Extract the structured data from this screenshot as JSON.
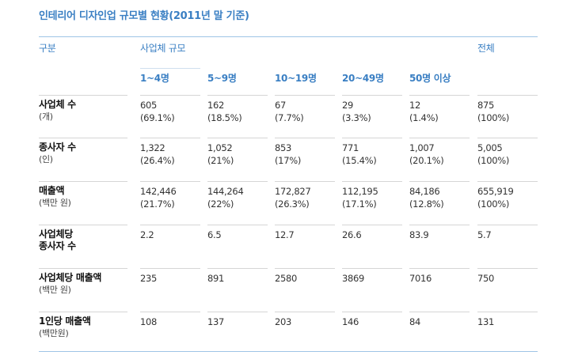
{
  "title": "인테리어 디자인업 규모별 현황(2011년 말 기준)",
  "header": {
    "category": "구분",
    "group": "사업체 규모",
    "total": "전체",
    "sizes": [
      "1~4명",
      "5~9명",
      "10~19명",
      "20~49명",
      "50명 이상"
    ]
  },
  "rows": [
    {
      "label": "사업체 수",
      "unit": "(개)",
      "cells": [
        {
          "value": "605",
          "pct": "(69.1%)"
        },
        {
          "value": "162",
          "pct": "(18.5%)"
        },
        {
          "value": "67",
          "pct": "(7.7%)"
        },
        {
          "value": "29",
          "pct": "(3.3%)"
        },
        {
          "value": "12",
          "pct": "(1.4%)"
        },
        {
          "value": "875",
          "pct": "(100%)"
        }
      ]
    },
    {
      "label": "종사자 수",
      "unit": "(인)",
      "cells": [
        {
          "value": "1,322",
          "pct": "(26.4%)"
        },
        {
          "value": "1,052",
          "pct": "(21%)"
        },
        {
          "value": "853",
          "pct": "(17%)"
        },
        {
          "value": "771",
          "pct": "(15.4%)"
        },
        {
          "value": "1,007",
          "pct": "(20.1%)"
        },
        {
          "value": "5,005",
          "pct": "(100%)"
        }
      ]
    },
    {
      "label": "매출액",
      "unit": "(백만 원)",
      "cells": [
        {
          "value": "142,446",
          "pct": "(21.7%)"
        },
        {
          "value": "144,264",
          "pct": "(22%)"
        },
        {
          "value": "172,827",
          "pct": "(26.3%)"
        },
        {
          "value": "112,195",
          "pct": "(17.1%)"
        },
        {
          "value": "84,186",
          "pct": "(12.8%)"
        },
        {
          "value": "655,919",
          "pct": "(100%)"
        }
      ]
    },
    {
      "label": "사업체당",
      "label2": "종사자 수",
      "cells": [
        {
          "value": "2.2"
        },
        {
          "value": "6.5"
        },
        {
          "value": "12.7"
        },
        {
          "value": "26.6"
        },
        {
          "value": "83.9"
        },
        {
          "value": "5.7"
        }
      ]
    },
    {
      "label": "사업체당 매출액",
      "unit": "(백만 원)",
      "cells": [
        {
          "value": "235"
        },
        {
          "value": "891"
        },
        {
          "value": "2580"
        },
        {
          "value": "3869"
        },
        {
          "value": "7016"
        },
        {
          "value": "750"
        }
      ]
    },
    {
      "label": "1인당 매출액",
      "unit": "(백만원)",
      "cells": [
        {
          "value": "108"
        },
        {
          "value": "137"
        },
        {
          "value": "203"
        },
        {
          "value": "146"
        },
        {
          "value": "84"
        },
        {
          "value": "131"
        }
      ]
    }
  ]
}
